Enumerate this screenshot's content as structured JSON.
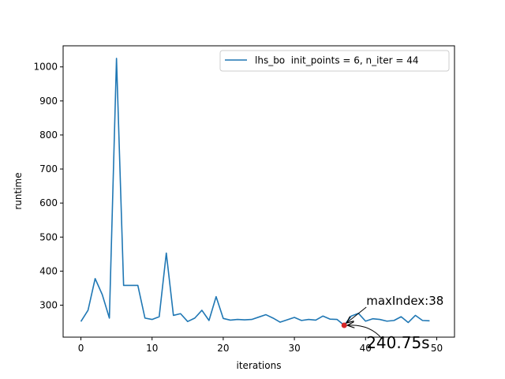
{
  "chart_data": {
    "type": "line",
    "title": "",
    "xlabel": "iterations",
    "ylabel": "runtime",
    "xlim": [
      -2.5,
      52.5
    ],
    "ylim": [
      206,
      1062
    ],
    "x_ticks": [
      0,
      10,
      20,
      30,
      40,
      50
    ],
    "y_ticks": [
      300,
      400,
      500,
      600,
      700,
      800,
      900,
      1000
    ],
    "grid": false,
    "legend_position": "top-right",
    "series": [
      {
        "name": "lhs_bo  init_points = 6, n_iter = 44",
        "color": "#1f77b4",
        "x": [
          0,
          1,
          2,
          3,
          4,
          5,
          6,
          7,
          8,
          9,
          10,
          11,
          12,
          13,
          14,
          15,
          16,
          17,
          18,
          19,
          20,
          21,
          22,
          23,
          24,
          25,
          26,
          27,
          28,
          29,
          30,
          31,
          32,
          33,
          34,
          35,
          36,
          37,
          38,
          39,
          40,
          41,
          42,
          43,
          44,
          45,
          46,
          47,
          48,
          49
        ],
        "values": [
          252,
          285,
          378,
          331,
          262,
          1025,
          358,
          358,
          358,
          262,
          258,
          266,
          453,
          270,
          275,
          252,
          262,
          285,
          255,
          325,
          261,
          256,
          258,
          257,
          258,
          265,
          272,
          262,
          250,
          257,
          264,
          255,
          258,
          256,
          268,
          259,
          258,
          240.75,
          268,
          276,
          253,
          260,
          258,
          253,
          255,
          266,
          249,
          270,
          255,
          254
        ]
      }
    ],
    "highlight": {
      "x": 37,
      "y": 240.75,
      "color": "#d62728",
      "label_index": "maxIndex:38",
      "label_value": "240.75s"
    }
  }
}
